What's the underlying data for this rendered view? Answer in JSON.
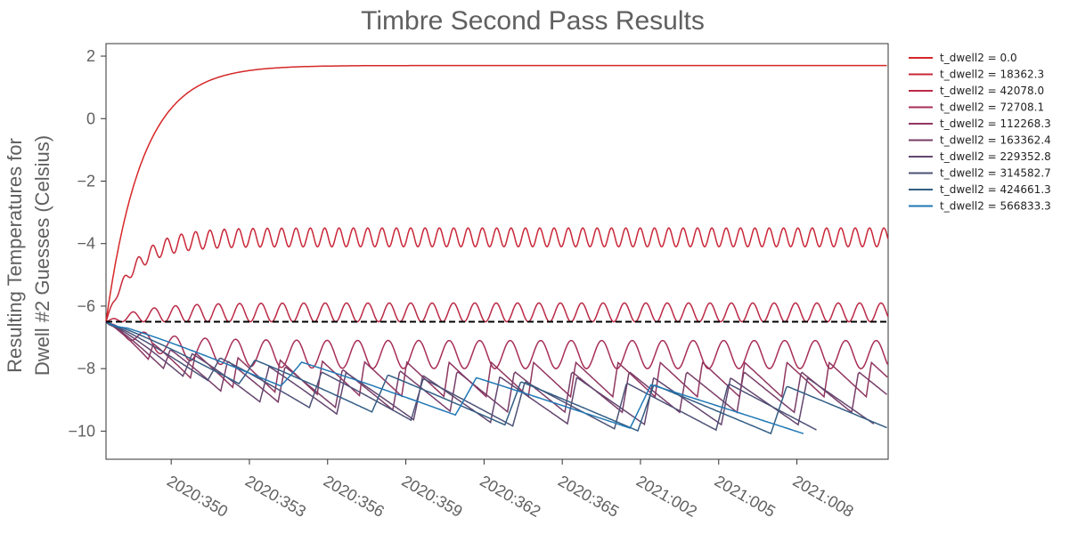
{
  "chart_data": {
    "type": "line",
    "title": "Timbre Second Pass Results",
    "ylabel_line1": "Resulting Temperatures for",
    "ylabel_line2": "Dwell #2 Guesses (Celsius)",
    "xlabel": "",
    "x_range_days": [
      347.5,
      377.5
    ],
    "ylim": [
      -10.9,
      2.4
    ],
    "y_ticks": [
      2,
      0,
      -2,
      -4,
      -6,
      -8,
      -10
    ],
    "y_tick_labels": [
      "2",
      "0",
      "−2",
      "−4",
      "−6",
      "−8",
      "−10"
    ],
    "x_ticks": [
      {
        "day": 350,
        "label": "2020:350"
      },
      {
        "day": 353,
        "label": "2020:353"
      },
      {
        "day": 356,
        "label": "2020:356"
      },
      {
        "day": 359,
        "label": "2020:359"
      },
      {
        "day": 362,
        "label": "2020:362"
      },
      {
        "day": 365,
        "label": "2020:365"
      },
      {
        "day": 368,
        "label": "2021:002"
      },
      {
        "day": 371,
        "label": "2021:005"
      },
      {
        "day": 374,
        "label": "2021:008"
      }
    ],
    "reference_line": {
      "value": -6.5,
      "style": "dashed",
      "color": "#000000"
    },
    "grid": false,
    "legend_position": "right",
    "series": [
      {
        "name": "t_dwell2 = 0.0",
        "color": "#d62728",
        "dwell2": 0.0,
        "start": -6.5,
        "hot_level": 1.7,
        "cold_level": 1.7,
        "period_days": 0,
        "cycles": 0,
        "start_day": 347.5
      },
      {
        "name": "t_dwell2 = 18362.3",
        "color": "#c92738",
        "dwell2": 18362.3,
        "start": -6.5,
        "hot_level": -3.5,
        "cold_level": -4.1,
        "period_days": 0.55,
        "cycles": 55,
        "start_day": 347.5
      },
      {
        "name": "t_dwell2 = 42078.0",
        "color": "#bb2a47",
        "dwell2": 42078.0,
        "start": -6.5,
        "hot_level": -5.9,
        "cold_level": -6.5,
        "period_days": 0.82,
        "cycles": 37,
        "start_day": 347.5
      },
      {
        "name": "t_dwell2 = 72708.1",
        "color": "#a72f55",
        "dwell2": 72708.1,
        "start": -6.5,
        "hot_level": -7.1,
        "cold_level": -8.0,
        "period_days": 1.17,
        "cycles": 26,
        "start_day": 347.5
      },
      {
        "name": "t_dwell2 = 112268.3",
        "color": "#90365f",
        "dwell2": 112268.3,
        "start": -6.5,
        "hot_level": -7.8,
        "cold_level": -8.9,
        "period_days": 1.62,
        "cycles": 19,
        "start_day": 347.5
      },
      {
        "name": "t_dwell2 = 163362.4",
        "color": "#783d68",
        "dwell2": 163362.4,
        "start": -6.5,
        "hot_level": -8.1,
        "cold_level": -9.4,
        "period_days": 2.2,
        "cycles": 14,
        "start_day": 347.5
      },
      {
        "name": "t_dwell2 = 229352.8",
        "color": "#63466f",
        "dwell2": 229352.8,
        "start": -6.5,
        "hot_level": -8.3,
        "cold_level": -9.8,
        "period_days": 2.95,
        "cycles": 10,
        "start_day": 347.5
      },
      {
        "name": "t_dwell2 = 314582.7",
        "color": "#4c5176",
        "dwell2": 314582.7,
        "start": -6.5,
        "hot_level": -8.5,
        "cold_level": -10.0,
        "period_days": 3.9,
        "cycles": 7,
        "start_day": 347.5
      },
      {
        "name": "t_dwell2 = 424661.3",
        "color": "#335e84",
        "dwell2": 424661.3,
        "start": -6.5,
        "hot_level": -8.6,
        "cold_level": -10.15,
        "period_days": 5.1,
        "cycles": 6,
        "start_day": 347.5
      },
      {
        "name": "t_dwell2 = 566833.3",
        "color": "#1f77b4",
        "dwell2": 566833.3,
        "start": -6.5,
        "hot_level": -8.7,
        "cold_level": -10.25,
        "period_days": 6.7,
        "cycles": 4,
        "start_day": 347.5
      }
    ]
  }
}
